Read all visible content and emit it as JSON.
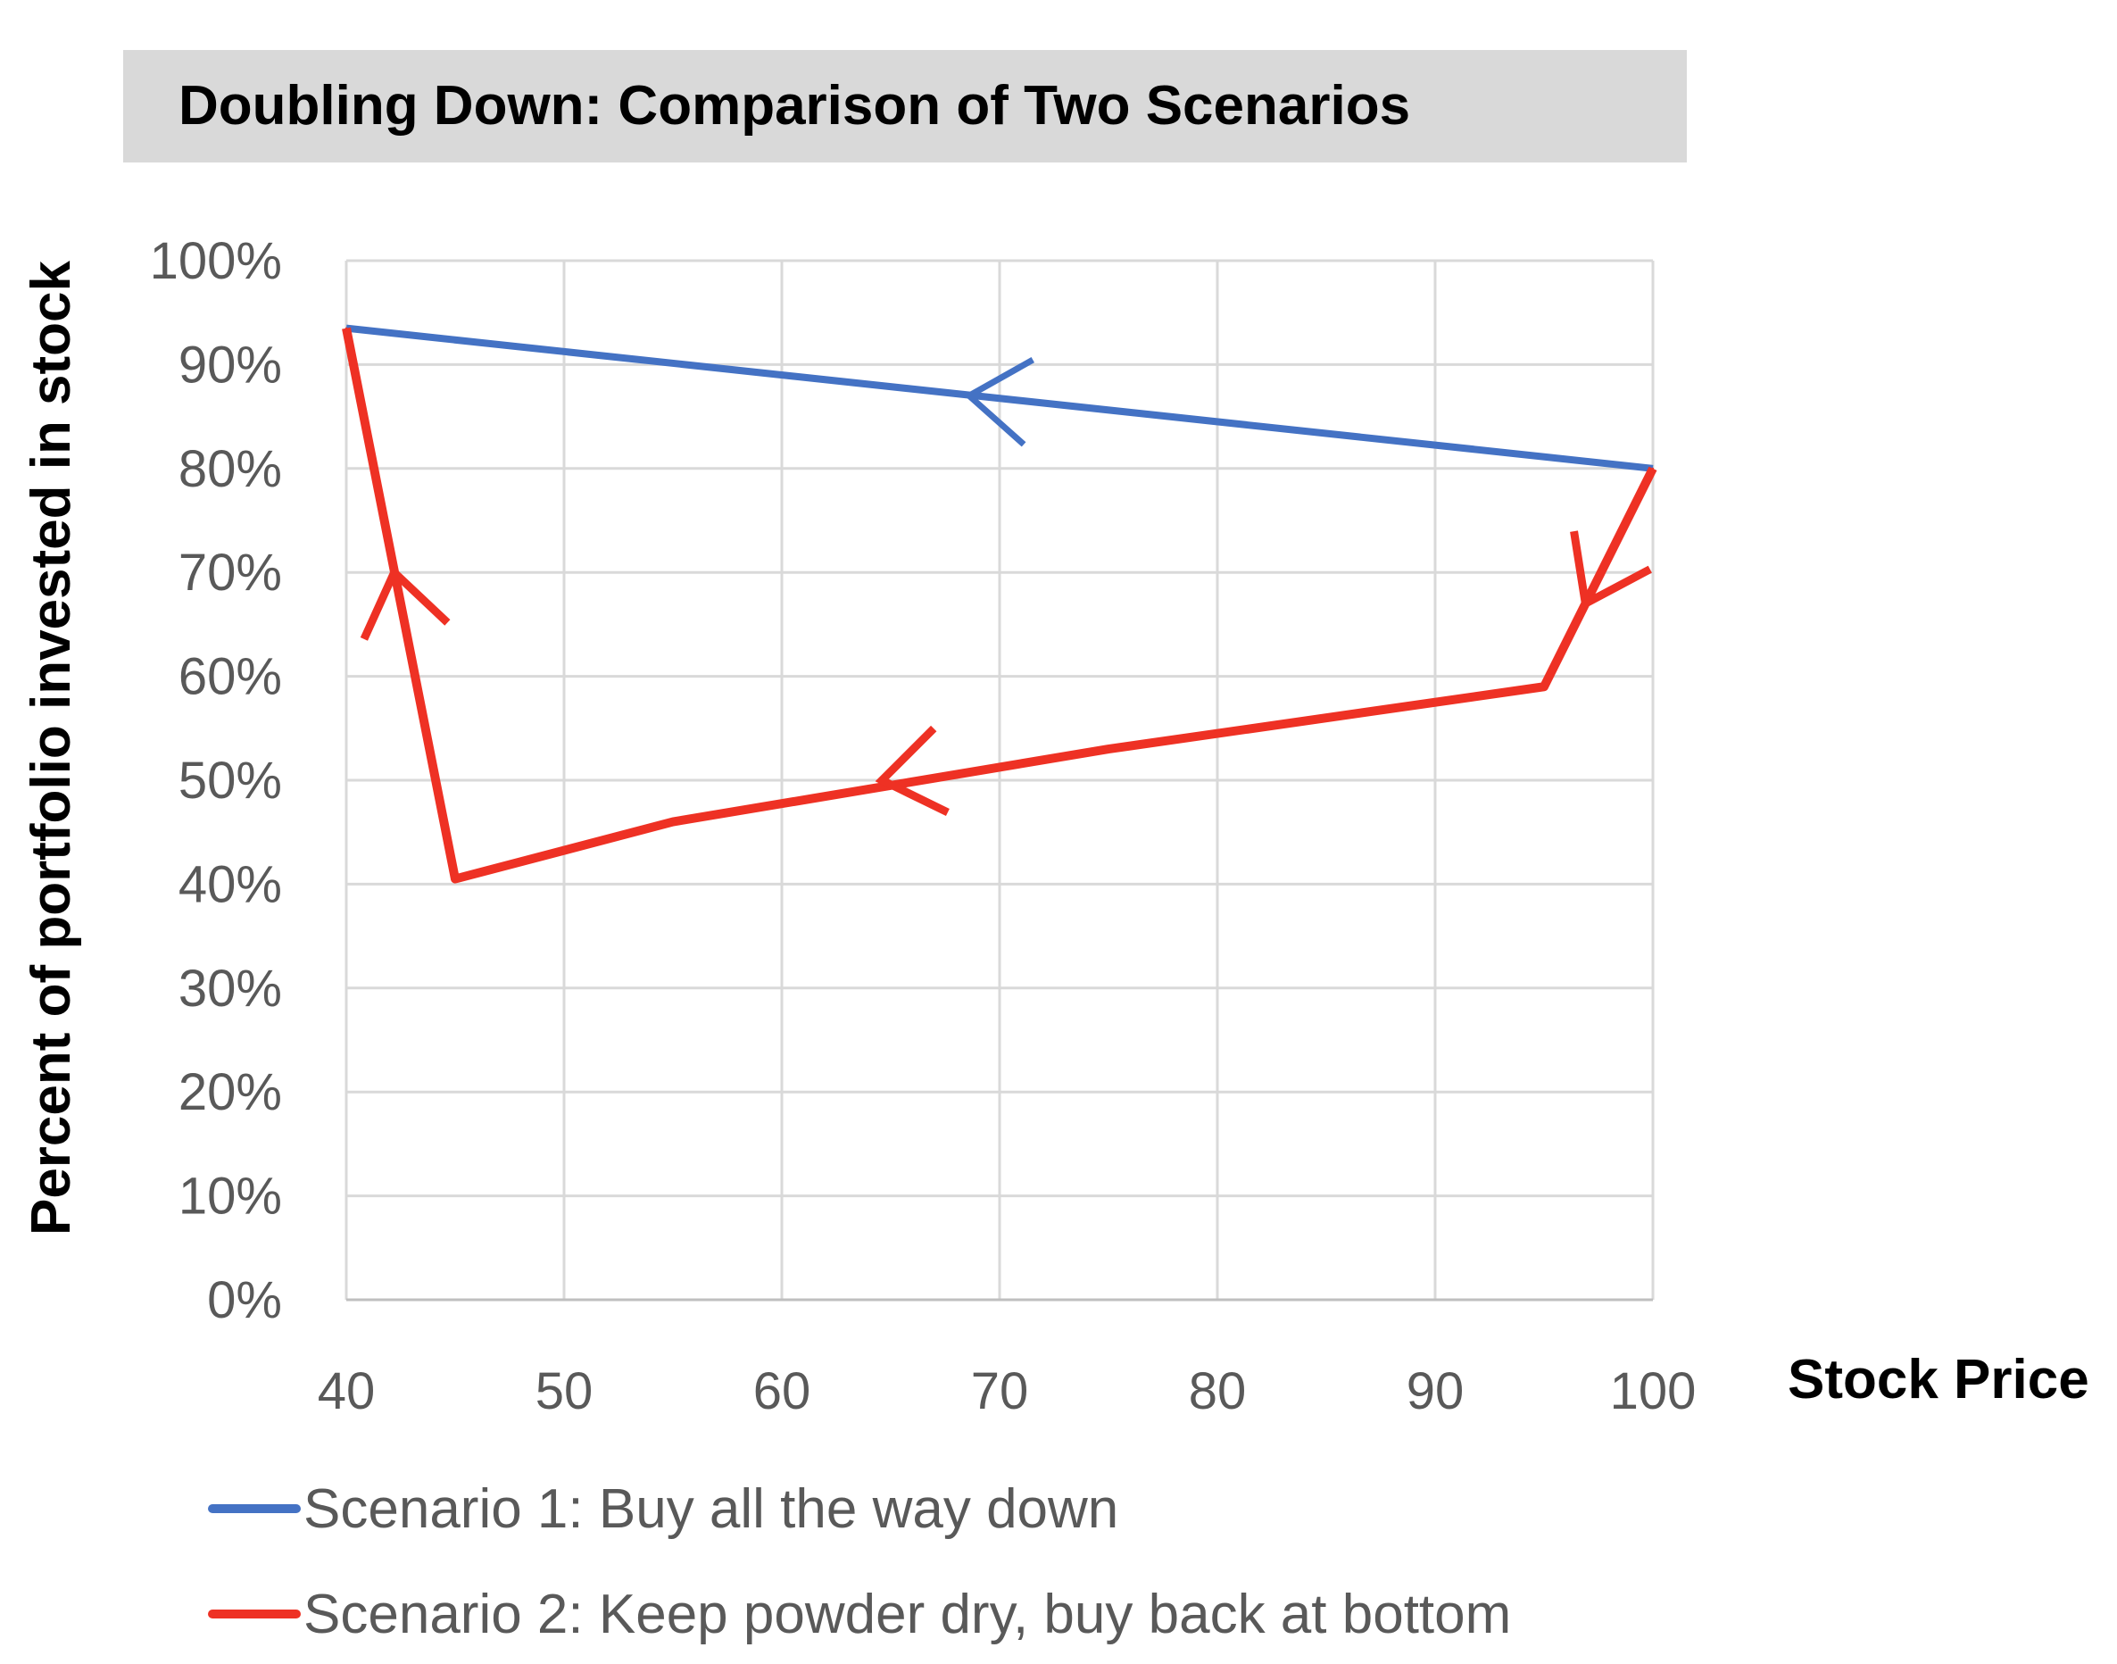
{
  "chart_data": {
    "type": "line",
    "title": "Doubling Down: Comparison of Two Scenarios",
    "xlabel": "Stock Price",
    "ylabel": "Percent of portfolio invested in stock",
    "xlim": [
      40,
      100
    ],
    "ylim": [
      0,
      1
    ],
    "x_ticks": [
      40,
      50,
      60,
      70,
      80,
      90,
      100
    ],
    "x_tick_labels": [
      "40",
      "50",
      "60",
      "70",
      "80",
      "90",
      "100"
    ],
    "y_ticks": [
      0,
      0.1,
      0.2,
      0.3,
      0.4,
      0.5,
      0.6,
      0.7,
      0.8,
      0.9,
      1.0
    ],
    "y_tick_labels": [
      "0%",
      "10%",
      "20%",
      "30%",
      "40%",
      "50%",
      "60%",
      "70%",
      "80%",
      "90%",
      "100%"
    ],
    "grid": true,
    "legend_position": "bottom",
    "series": [
      {
        "name": "Scenario 1: Buy all the way down",
        "color": "#4472c4",
        "points": [
          [
            100,
            0.8
          ],
          [
            40,
            0.935
          ]
        ],
        "arrows": [
          {
            "x": 68.6,
            "y": 0.87,
            "direction": "toward-lower-x"
          }
        ]
      },
      {
        "name": "Scenario 2: Keep powder dry, buy back at bottom",
        "color": "#ee3124",
        "points": [
          [
            100,
            0.8
          ],
          [
            95,
            0.59
          ],
          [
            75,
            0.53
          ],
          [
            55,
            0.46
          ],
          [
            45,
            0.405
          ],
          [
            40,
            0.935
          ]
        ],
        "arrows": [
          {
            "x": 96.9,
            "y": 0.67,
            "direction": "along-path"
          },
          {
            "x": 64.6,
            "y": 0.5,
            "direction": "along-path"
          },
          {
            "x": 42.2,
            "y": 0.7,
            "direction": "along-path"
          }
        ]
      }
    ]
  }
}
